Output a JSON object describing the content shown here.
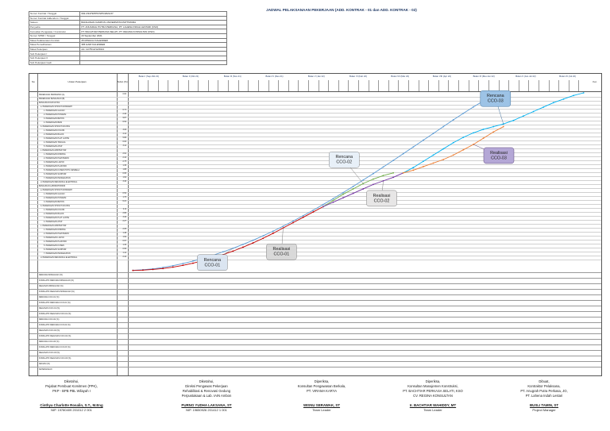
{
  "title": "JADWAL PELAKSANAAN PEKERJAAN (ADD. KONTRAK - 01 dan ADD. KONTRAK - 02)",
  "info": [
    {
      "label": "Nomor Kontrak / Tanggal",
      "value": "602.2/3479/PPK/SPK/2021/27"
    },
    {
      "label": "Nomor Kontrak Addendum / Tanggal",
      "value": ""
    },
    {
      "label": "Satuan",
      "value": "BANGUNAN KAMPUS UNIVERSITAS PATTIMURA"
    },
    {
      "label": "Penyedia",
      "value": "PT. ANUGRAH PUTRA PERKASA, PT. LAHENA INDAH LESTARI (KSO)"
    },
    {
      "label": "Konsultan Pengawas / Konstruksi",
      "value": "PT. BACHTIAR PERKASA SELATI, PT. REGINA KONSULTAN (KSO)"
    },
    {
      "label": "Nomor SPMK / Tanggal",
      "value": "23 September 2021"
    },
    {
      "label": "Masa Pelaksanaan Kontrak",
      "value": "25 MINGGU KALENDER"
    },
    {
      "label": "Masa Pemeliharaan",
      "value": "365 HARI KALENDER"
    },
    {
      "label": "Masa Pekerjaan",
      "value": "AA. 11/75/12/12/2021"
    },
    {
      "label": "Sub Pekerjaan I",
      "value": ""
    },
    {
      "label": "Sub Pekerjaan II",
      "value": ""
    },
    {
      "label": "Sub Pekerjaan Gedi",
      "value": ""
    }
  ],
  "header": {
    "no": "No",
    "uraian": "Uraian Pekerjaan",
    "bobot": "Bobot (%)",
    "ket": "Ket."
  },
  "months": [
    "Bulan I (Sep-Okt 21)",
    "Bulan II (Okt 21)",
    "Bulan III (Nov 21)",
    "Bulan IV (Des 21)",
    "Bulan V (Jan 22)",
    "Bulan VI (Feb 22)",
    "Bulan VII (Mar 22)",
    "Bulan VIII (Apr 22)",
    "Bulan IX (Mei-Jun 22)",
    "Bulan X (Jun-Jul 22)",
    "Bulan XI (Jul 22)"
  ],
  "tasks": [
    "PEKERJAAN PERSIAPAN (A)",
    "PEKERJAAN BANGUNAN (B)",
    "BANGUNAN FAKULTAS",
    "a. PEKERJAAN STRUKTUR BAWAH",
    "1. PEKERJAAN GALIAN",
    "2. PEKERJAAN PONDASI",
    "3. PEKERJAAN BETON",
    "4. PEKERJAAN BESI",
    "b. PEKERJAAN STRUKTUR ATAS",
    "1. PEKERJAAN KOLOM",
    "2. PEKERJAAN BALOK",
    "3. PEKERJAAN PLAT LANTAI",
    "4. PEKERJAAN TANGGA",
    "5. PEKERJAAN ATAP",
    "c. PEKERJAAN ARSITEKTUR",
    "1. PEKERJAAN DINDING",
    "2. PEKERJAAN PLESTERAN",
    "3. PEKERJAAN LANTAI",
    "4. PEKERJAAN PLAFOND",
    "5. PEKERJAAN KUSEN PINTU JENDELA",
    "6. PEKERJAAN SANITAIR",
    "7. PEKERJAAN PENGECATAN",
    "d. PEKERJAAN MEKANIKAL ELEKTRIKAL",
    "BANGUNAN LABORATORIUM",
    "a. PEKERJAAN STRUKTUR BAWAH",
    "1. PEKERJAAN GALIAN",
    "2. PEKERJAAN PONDASI",
    "3. PEKERJAAN BETON",
    "b. PEKERJAAN STRUKTUR ATAS",
    "1. PEKERJAAN KOLOM",
    "2. PEKERJAAN BALOK",
    "3. PEKERJAAN PLAT LANTAI",
    "4. PEKERJAAN ATAP",
    "c. PEKERJAAN ARSITEKTUR",
    "1. PEKERJAAN DINDING",
    "2. PEKERJAAN PLESTERAN",
    "3. PEKERJAAN LANTAI",
    "4. PEKERJAAN PLAFOND",
    "5. PEKERJAAN KUSEN",
    "6. PEKERJAAN SANITAIR",
    "7. PEKERJAAN PENGECATAN",
    "d. PEKERJAAN MEKANIKAL ELEKTRIKAL"
  ],
  "weights": [
    "0.84",
    "",
    "",
    "",
    "0.71",
    "2.40",
    "9.87",
    "6.54",
    "",
    "3.06",
    "4.12",
    "5.86",
    "0.63",
    "3.14",
    "",
    "2.91",
    "2.10",
    "2.75",
    "1.36",
    "1.88",
    "0.95",
    "1.62",
    "3.40",
    "",
    "",
    "0.52",
    "1.70",
    "6.21",
    "",
    "2.11",
    "2.86",
    "3.40",
    "2.27",
    "",
    "2.05",
    "1.48",
    "1.92",
    "0.97",
    "1.33",
    "0.66",
    "1.14",
    "2.44"
  ],
  "summary_rows": [
    "RENCANA MINGGUAN (%)",
    "KOMULATIF RENCANA MINGGUAN (%)",
    "REALISASI MINGGUAN (%)",
    "KOMULATIF REALISASI MINGGUAN (%)",
    "RENCANA CCO-01 (%)",
    "KOMULATIF RENCANA CCO-01 (%)",
    "REALISASI CCO-01 (%)",
    "KOMULATIF REALISASI CCO-01 (%)",
    "RENCANA CCO-02 (%)",
    "KOMULATIF RENCANA CCO-02 (%)",
    "REALISASI CCO-02 (%)",
    "KOMULATIF REALISASI CCO-02 (%)",
    "RENCANA CCO-03 (%)",
    "KOMULATIF RENCANA CCO-03 (%)",
    "REALISASI CCO-03 (%)",
    "KOMULATIF REALISASI CCO-03 (%)",
    "DEVIASI (%)",
    "KETERANGAN"
  ],
  "chart_data": {
    "type": "line",
    "weeks": 46,
    "ylim": [
      0,
      100
    ],
    "series": [
      {
        "name": "Rencana CCO-01",
        "color": "#5b9bd5",
        "x": [
          1,
          2,
          3,
          4,
          5,
          6,
          7,
          8,
          9,
          10,
          11,
          12,
          13,
          14,
          15,
          16,
          17,
          18,
          19,
          20,
          21,
          22,
          23,
          24,
          25,
          26,
          27,
          28,
          29,
          30,
          31,
          32,
          33,
          34,
          35,
          36
        ],
        "y": [
          0.2,
          0.5,
          1.0,
          1.8,
          2.8,
          4.0,
          5.4,
          7.0,
          8.7,
          10.6,
          12.6,
          14.8,
          17.1,
          19.6,
          22.2,
          25.0,
          27.9,
          30.9,
          34.0,
          37.2,
          40.5,
          43.9,
          47.4,
          51.0,
          54.6,
          58.3,
          62.0,
          65.8,
          69.6,
          73.4,
          77.2,
          81.0,
          84.8,
          88.5,
          92.1,
          95.5
        ]
      },
      {
        "name": "Realisasi CCO-01",
        "color": "#c00000",
        "x": [
          1,
          2,
          3,
          4,
          5,
          6,
          7,
          8,
          9,
          10,
          11,
          12,
          13,
          14,
          15,
          16,
          17,
          18,
          19,
          20
        ],
        "y": [
          0.1,
          0.3,
          0.7,
          1.2,
          2.0,
          3.0,
          4.2,
          5.6,
          7.2,
          9.0,
          11.0,
          13.2,
          15.6,
          18.2,
          21.0,
          24.0,
          27.0,
          30.0,
          33.0,
          36.0
        ]
      },
      {
        "name": "Rencana CCO-02",
        "color": "#70ad47",
        "x": [
          20,
          21,
          22,
          23,
          24,
          25,
          26,
          27
        ],
        "y": [
          36.0,
          39.5,
          43.0,
          46.0,
          49.0,
          51.5,
          53.5,
          55.0
        ]
      },
      {
        "name": "Realisasi CCO-02",
        "color": "#7030a0",
        "x": [
          20,
          21,
          22,
          23,
          24,
          25,
          26,
          27,
          28
        ],
        "y": [
          36.0,
          38.5,
          41.0,
          43.5,
          46.0,
          48.5,
          50.5,
          52.5,
          55.0
        ]
      },
      {
        "name": "Rencana CCO-03",
        "color": "#00b0f0",
        "x": [
          28,
          29,
          30,
          31,
          32,
          33,
          34,
          35,
          36,
          37,
          38,
          39,
          40,
          41,
          42,
          43,
          44,
          45,
          46
        ],
        "y": [
          55.0,
          58.0,
          61.5,
          65.0,
          68.5,
          72.0,
          75.0,
          77.5,
          79.5,
          81.0,
          82.5,
          84.5,
          87.0,
          89.5,
          92.0,
          94.5,
          96.5,
          98.5,
          100.0
        ]
      },
      {
        "name": "Realisasi CCO-03",
        "color": "#ed7d31",
        "x": [
          28,
          29,
          30,
          31,
          32,
          33,
          34,
          35,
          36,
          37,
          38
        ],
        "y": [
          55.0,
          56.5,
          58.5,
          60.5,
          62.5,
          65.0,
          68.0,
          71.0,
          74.5,
          78.0,
          81.0
        ]
      }
    ],
    "callouts": [
      {
        "text": [
          "Rencana",
          "CCO-01"
        ],
        "series": 0,
        "at_week": 11,
        "fill": "#dbe5f1",
        "stroke": "#7f7f7f"
      },
      {
        "text": [
          "Realisasi",
          "CCO-01"
        ],
        "series": 1,
        "at_week": 16,
        "fill": "#d9d9d9",
        "stroke": "#7f7f7f"
      },
      {
        "text": [
          "Rencana",
          "CCO-02"
        ],
        "series": 2,
        "at_week": 24,
        "fill": "#e8f0f8",
        "stroke": "#7f7f7f"
      },
      {
        "text": [
          "Realisasi",
          "CCO-02"
        ],
        "series": 3,
        "at_week": 26,
        "fill": "#e7e6e6",
        "stroke": "#7f7f7f"
      },
      {
        "text": [
          "Rencana",
          "CCO-03"
        ],
        "series": 4,
        "at_week": 38,
        "fill": "#9dc3e6",
        "stroke": "#41719c"
      },
      {
        "text": [
          "Realisasi",
          "CCO-03"
        ],
        "series": 5,
        "at_week": 35,
        "fill": "#b4a7d6",
        "stroke": "#5f497a"
      }
    ]
  },
  "signatures": [
    {
      "role": [
        "Diketahui,",
        "Pejabat Pembuat Komitmen (PPK),",
        "PKP - BPB PBL Wilayah I"
      ],
      "name": "Cinthya Charlotte Rosalin, S.T., M.Eng",
      "id": "NIP. 19780409 201012 2 001"
    },
    {
      "role": [
        "Diketahui,",
        "Direksi Pengawas Pekerjaan",
        "Rehabilitasi & Renovasi Gedung",
        "Perpustakaan & Lab. IAIN Ambon"
      ],
      "name": "PURNO YUDHA LAKSANA, ST",
      "id": "NIP. 19650926 201412 1 001"
    },
    {
      "role": [
        "Diperiksa,",
        "Konsultan Pengawasan Berkala,",
        "PT. VIRAMA KARYA"
      ],
      "name": "WISNU SERAWAK, ST",
      "id": "Team Leader"
    },
    {
      "role": [
        "Diperiksa,",
        "Konsultan Manajemen Konstruksi,",
        "PT. BACHTIAR PERKASA SELATI, KSO",
        "CV. REGINA KONSULTAN"
      ],
      "name": "Ir. BACHTIAR WAHIDDY, MT",
      "id": "Team Leader"
    },
    {
      "role": [
        "Dibuat,",
        "Kontraktor Pelaksana,",
        "PT. Anugrah Putra Perkasa, JO,",
        "PT. Lahena Indah Lestari"
      ],
      "name": "BUSLI TAMIN, ST",
      "id": "Project Manager"
    }
  ]
}
